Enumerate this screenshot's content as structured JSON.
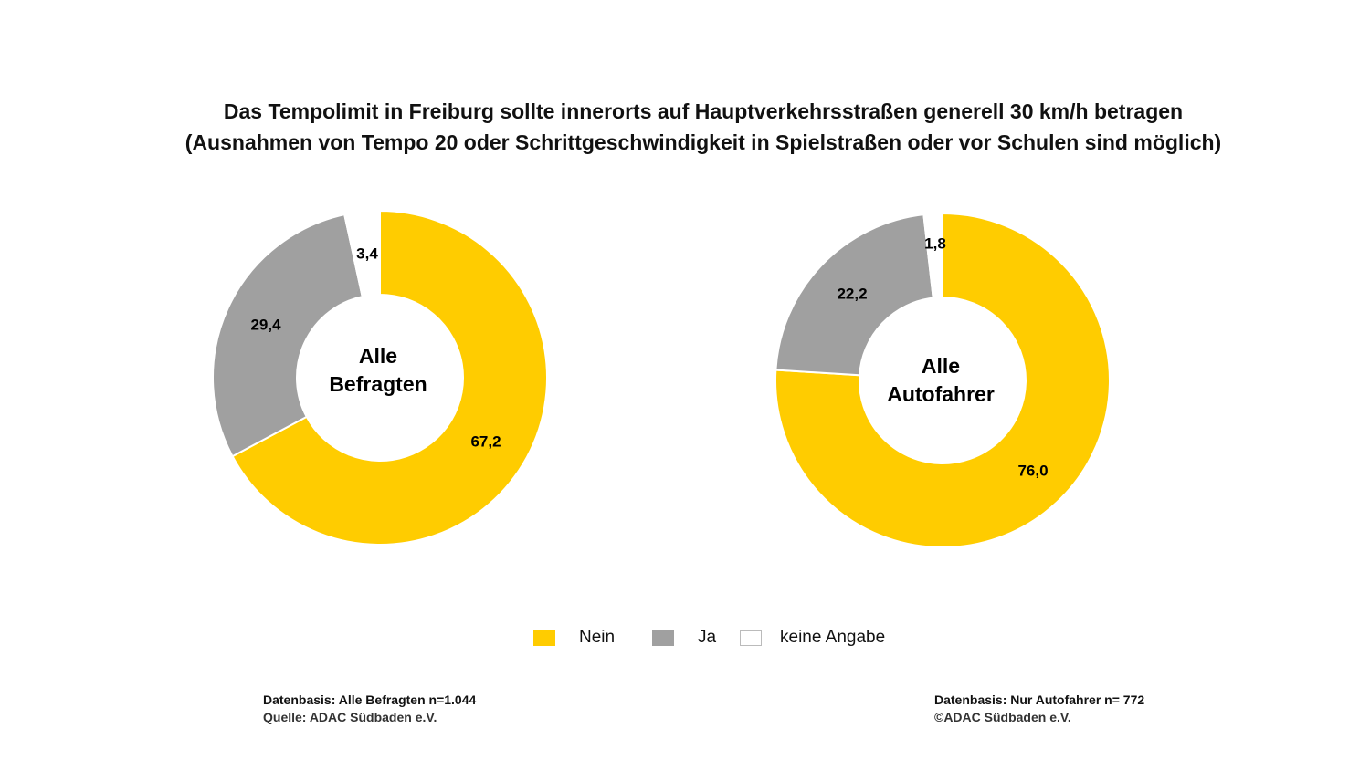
{
  "title": {
    "line1": "Das Tempolimit in Freiburg sollte innerorts auf Hauptverkehrsstraßen generell 30 km/h betragen",
    "line2": "(Ausnahmen von Tempo 20 oder Schrittgeschwindigkeit in Spielstraßen oder vor Schulen sind möglich)"
  },
  "colors": {
    "nein": "#FFCC00",
    "ja": "#A0A0A0",
    "keine_angabe": "#FFFFFF"
  },
  "chart_data": [
    {
      "type": "pie",
      "donut": true,
      "center_label": [
        "Alle",
        "Befragten"
      ],
      "categories": [
        "Nein",
        "Ja",
        "keine Angabe"
      ],
      "values": [
        67.2,
        29.4,
        3.4
      ],
      "value_labels": [
        "67,2",
        "29,4",
        "3,4"
      ]
    },
    {
      "type": "pie",
      "donut": true,
      "center_label": [
        "Alle",
        "Autofahrer"
      ],
      "categories": [
        "Nein",
        "Ja",
        "keine Angabe"
      ],
      "values": [
        76.0,
        22.2,
        1.8
      ],
      "value_labels": [
        "76,0",
        "22,2",
        "1,8"
      ]
    }
  ],
  "legend": {
    "items": [
      "Nein",
      "Ja",
      "keine Angabe"
    ]
  },
  "footer": {
    "left": {
      "line1": "Datenbasis: Alle Befragten  n=1.044",
      "line2": "Quelle: ADAC Südbaden e.V."
    },
    "right": {
      "line1": "Datenbasis: Nur Autofahrer   n= 772",
      "line2": "©ADAC Südbaden e.V."
    }
  }
}
